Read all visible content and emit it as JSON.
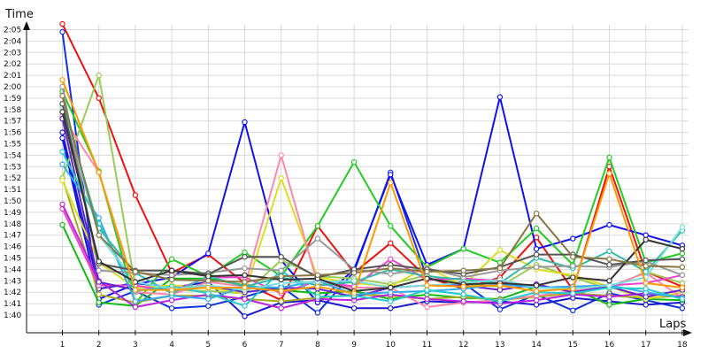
{
  "chart_data": {
    "type": "line",
    "ylabel": "Time",
    "xlabel": "Laps",
    "x": [
      1,
      2,
      3,
      4,
      5,
      6,
      7,
      8,
      9,
      10,
      11,
      12,
      13,
      14,
      15,
      16,
      17,
      18
    ],
    "ylim_seconds": [
      99,
      126
    ],
    "yticks": [
      {
        "v": 100,
        "label": "1:40"
      },
      {
        "v": 101,
        "label": "1:41"
      },
      {
        "v": 102,
        "label": "1:42"
      },
      {
        "v": 103,
        "label": "1:43"
      },
      {
        "v": 104,
        "label": "1:44"
      },
      {
        "v": 105,
        "label": "1:45"
      },
      {
        "v": 106,
        "label": "1:46"
      },
      {
        "v": 107,
        "label": "1:47"
      },
      {
        "v": 108,
        "label": "1:48"
      },
      {
        "v": 109,
        "label": "1:49"
      },
      {
        "v": 110,
        "label": "1:50"
      },
      {
        "v": 111,
        "label": "1:51"
      },
      {
        "v": 112,
        "label": "1:52"
      },
      {
        "v": 113,
        "label": "1:53"
      },
      {
        "v": 114,
        "label": "1:54"
      },
      {
        "v": 115,
        "label": "1:55"
      },
      {
        "v": 116,
        "label": "1:56"
      },
      {
        "v": 117,
        "label": "1:57"
      },
      {
        "v": 118,
        "label": "1:58"
      },
      {
        "v": 119,
        "label": "1:59"
      },
      {
        "v": 120,
        "label": "2:00"
      },
      {
        "v": 121,
        "label": "2:01"
      },
      {
        "v": 122,
        "label": "2:02"
      },
      {
        "v": 123,
        "label": "2:03"
      },
      {
        "v": 124,
        "label": "2:04"
      },
      {
        "v": 125,
        "label": "2:05"
      }
    ],
    "grid": true,
    "series": [
      {
        "color": "#ee1111",
        "values": [
          125.5,
          119,
          110.5,
          103.7,
          105.3,
          102.8,
          101.3,
          107.8,
          103.7,
          106.3,
          103.3,
          102.3,
          103.3,
          106.8,
          102.2,
          113,
          103.8,
          102.5
        ]
      },
      {
        "color": "#1133dd",
        "values": [
          124.8,
          100.9,
          102.1,
          100.6,
          100.8,
          101.6,
          102.5,
          100.2,
          103.8,
          112.5,
          103.2,
          102.8,
          100.5,
          101.8,
          100.4,
          101.9,
          101.3,
          100.6
        ]
      },
      {
        "color": "#1a1acc",
        "values": [
          116,
          102.3,
          102.8,
          102.4,
          102.9,
          99.9,
          101.1,
          101.3,
          100.6,
          100.6,
          101.2,
          101.1,
          101.2,
          100.9,
          101.5,
          101.2,
          100.9,
          101.1
        ]
      },
      {
        "color": "#1111ee",
        "values": [
          115.5,
          101.4,
          102.7,
          103.3,
          105.4,
          116.9,
          104.8,
          101.1,
          104,
          112.3,
          104.4,
          105.8,
          119.1,
          105.8,
          106.7,
          107.9,
          107,
          106.1
        ]
      },
      {
        "color": "#22cc22",
        "values": [
          119.6,
          112.6,
          101,
          104.9,
          103.4,
          105.5,
          103.4,
          107.8,
          113.4,
          107.8,
          104.2,
          105.8,
          104.6,
          107.6,
          104.4,
          113.8,
          104.6,
          105.4
        ]
      },
      {
        "color": "#11bb11",
        "values": [
          107.9,
          101.1,
          100.8,
          103.2,
          103.2,
          102.6,
          102.2,
          101.9,
          102.1,
          101.4,
          101.8,
          101.5,
          101.4,
          102.5,
          102.3,
          100.9,
          101.4,
          101.3
        ]
      },
      {
        "color": "#aaaa22",
        "values": [
          112,
          101.8,
          101.1,
          101.7,
          101.7,
          101.4,
          101.2,
          101.5,
          101.8,
          101.7,
          101.4,
          101.6,
          101.3,
          101.6,
          101.9,
          101.7,
          101.5,
          101.7
        ]
      },
      {
        "color": "#99cc55",
        "values": [
          112,
          121,
          102.5,
          102.2,
          102.1,
          101.9,
          104.8,
          103.4,
          103.2,
          102.7,
          103.5,
          102.7,
          102.5,
          104.4,
          103.3,
          102.3,
          103.8,
          102.8
        ]
      },
      {
        "color": "#dddd22",
        "values": [
          111.8,
          104.6,
          102.4,
          102.6,
          102.4,
          101.9,
          112,
          103.3,
          102.8,
          102.5,
          104.2,
          102.6,
          105.7,
          104,
          103.5,
          102.5,
          101.4,
          102
        ]
      },
      {
        "color": "#ff88aa",
        "values": [
          117.4,
          112.5,
          102,
          101.8,
          102.9,
          102.5,
          114,
          102.7,
          102.4,
          102.4,
          100.7,
          101.1,
          101.3,
          101.7,
          102.1,
          102.5,
          103.7,
          101.5
        ]
      },
      {
        "color": "#ee44cc",
        "values": [
          109.3,
          102.6,
          102.6,
          102.1,
          103.3,
          103.3,
          101.9,
          103,
          102.5,
          104.9,
          103.1,
          103.2,
          103,
          102.4,
          102.5,
          102.6,
          102.8,
          103.5
        ]
      },
      {
        "color": "#bb22dd",
        "values": [
          109.7,
          103,
          100.7,
          101.3,
          101.8,
          101.4,
          100.6,
          101.4,
          101.3,
          101.8,
          101.4,
          101.2,
          101,
          101.3,
          101.8,
          101.6,
          101.9,
          101.6
        ]
      },
      {
        "color": "#6622cc",
        "values": [
          117.2,
          102.9,
          102.2,
          102.3,
          102.6,
          102,
          102.4,
          102.3,
          101.6,
          102.4,
          102.6,
          102.6,
          102.2,
          102.7,
          102,
          102.5,
          101.6,
          102.2
        ]
      },
      {
        "color": "#33aaee",
        "values": [
          113.2,
          108.5,
          101.2,
          101.7,
          101.4,
          102.5,
          102.4,
          103,
          101.8,
          102,
          102.1,
          102.3,
          102.7,
          102.4,
          102.5,
          102.6,
          102,
          101.5
        ]
      },
      {
        "color": "#22cccc",
        "values": [
          114.3,
          108,
          102.1,
          102.5,
          101.9,
          100.8,
          103.9,
          101.6,
          101.7,
          101.2,
          102.2,
          101.8,
          101.2,
          102,
          101.9,
          102.4,
          102.3,
          101.4
        ]
      },
      {
        "color": "#33bbaa",
        "values": [
          118.5,
          107.6,
          103.7,
          101.9,
          103.4,
          102.5,
          103.3,
          102.6,
          102.9,
          104,
          103.4,
          103.1,
          102.8,
          105,
          104.1,
          105.6,
          103.8,
          107.4
        ]
      },
      {
        "color": "#77dddd",
        "values": [
          118.2,
          107,
          102.9,
          102.3,
          102.6,
          102.2,
          102.8,
          102.9,
          103,
          102.4,
          102.6,
          102.8,
          103.1,
          102.4,
          102.3,
          102.6,
          103.3,
          107.7
        ]
      },
      {
        "color": "#999999",
        "values": [
          120,
          103.9,
          103.7,
          103.5,
          103.7,
          104.1,
          103.9,
          106.7,
          104,
          103.6,
          104.1,
          103.3,
          103.9,
          104.2,
          104.3,
          104.2,
          104.7,
          103.5
        ]
      },
      {
        "color": "#555555",
        "values": [
          118.5,
          104.5,
          103.9,
          103.9,
          103.6,
          105.1,
          105.1,
          103.3,
          104,
          104.4,
          104,
          103.6,
          104.2,
          105.3,
          105.3,
          104.4,
          104.8,
          104.9
        ]
      },
      {
        "color": "#333333",
        "values": [
          117.8,
          104.7,
          102.9,
          103.9,
          103.4,
          103.5,
          103.1,
          103.2,
          102.1,
          102.4,
          103.2,
          102.7,
          102.8,
          102.6,
          103.3,
          103,
          106.6,
          105.8
        ]
      },
      {
        "color": "#887744",
        "values": [
          119.2,
          107,
          103.8,
          103.1,
          103,
          102.9,
          103.4,
          103.5,
          103.7,
          104.1,
          103.8,
          103.9,
          104.1,
          108.9,
          105.1,
          104.9,
          104.3,
          104.2
        ]
      },
      {
        "color": "#ff9900",
        "values": [
          120.6,
          112.5,
          102.2,
          102.2,
          102.4,
          102.4,
          102.1,
          102.5,
          101.9,
          111.6,
          102.6,
          102.5,
          102.6,
          102.1,
          102.3,
          112.4,
          102.8,
          102.4
        ]
      }
    ]
  }
}
